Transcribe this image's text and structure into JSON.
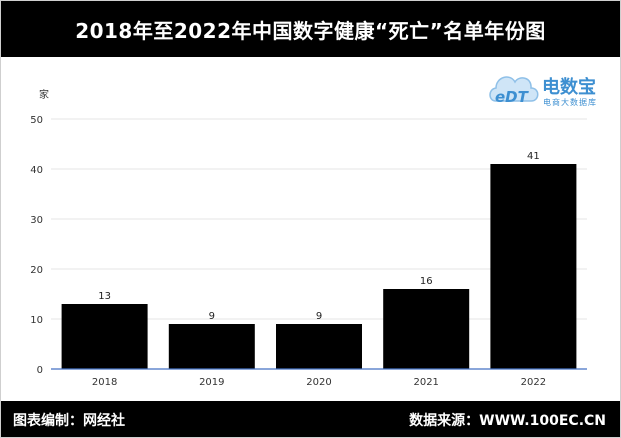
{
  "title": "2018年至2022年中国数字健康“死亡”名单年份图",
  "logo": {
    "mark": "eDT",
    "name": "电数宝",
    "subtitle": "电商大数据库"
  },
  "footer": {
    "left": "图表编制：网经社",
    "right": "数据来源：WWW.100EC.CN"
  },
  "chart_data": {
    "type": "bar",
    "categories": [
      "2018",
      "2019",
      "2020",
      "2021",
      "2022"
    ],
    "values": [
      13,
      9,
      9,
      16,
      41
    ],
    "data_labels": [
      "13",
      "9",
      "9",
      "16",
      "41"
    ],
    "ylabel": "家",
    "ylim": [
      0,
      50
    ],
    "yticks": [
      "0",
      "10",
      "20",
      "30",
      "40",
      "50"
    ],
    "grid": true,
    "bar_color": "#000000",
    "axis_color": "#4472c4"
  }
}
